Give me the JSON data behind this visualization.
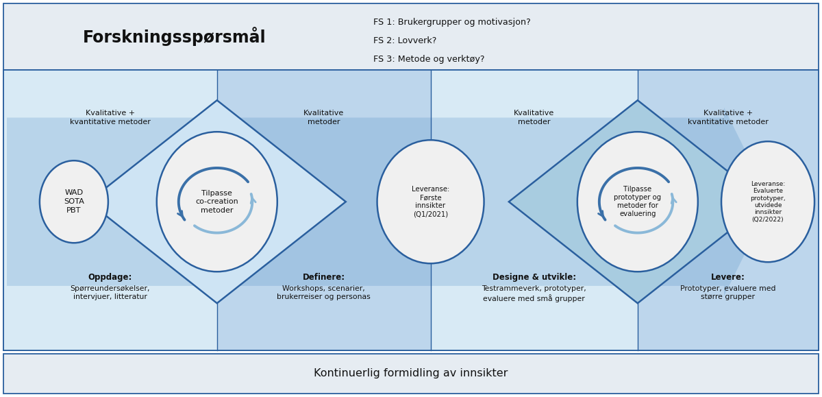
{
  "title_top": "Forskningsspørsmål",
  "fs_lines": [
    "FS 1: Brukergrupper og motivasjon?",
    "FS 2: Lovverk?",
    "FS 3: Metode og verktøy?"
  ],
  "bottom_text": "Kontinuerlig formidling av innsikter",
  "wad_text": "WAD\nSOTA\nPBT",
  "circle1_text": "Tilpasse\nco-creation\nmetoder",
  "circle2_text": "Leveranse:\nFørste\ninnsikter\n(Q1/2021)",
  "circle3_text": "Tilpasse\nprototyper og\nmetoder for\nevaluering",
  "circle4_text": "Leveranse:\nEvaluerte\nprototyper,\nutvidede\ninnsikter\n(Q2/2022)",
  "method1": "Kvalitative +\nkvantitative metoder",
  "method2": "Kvalitative\nmetoder",
  "method3": "Kvalitative\nmetoder",
  "method4": "Kvalitative +\nkvantitative metoder",
  "phase1_bold": "Oppdage",
  "phase1_text": "Spørreundersøkelser,\nintervjuer, litteratur",
  "phase2_bold": "Definere",
  "phase2_text": "Workshops, scenarier,\nbrukerreiser og personas",
  "phase3_bold": "Designe & utvikle",
  "phase3_text": "Testrammeverk, prototyper,\nevaluere med små grupper",
  "phase4_bold": "Levere",
  "phase4_text": "Prototyper, evaluere med\nstørre grupper",
  "top_bg": "#e6ecf2",
  "border_color": "#2a5f9e",
  "circle_fill": "#f0f0f0",
  "text_dark": "#111111",
  "arrow_blue": "#3a80be",
  "col_bg_1": "#d8eaf5",
  "col_bg_2": "#bdd6ec",
  "col_bg_3": "#d8eaf5",
  "col_bg_4": "#bdd6ec",
  "diamond_fill_1": "#cee4f4",
  "diamond_fill_2": "#a8cce0",
  "arc_dark": "#3a70a8",
  "arc_light": "#8ab8d8"
}
